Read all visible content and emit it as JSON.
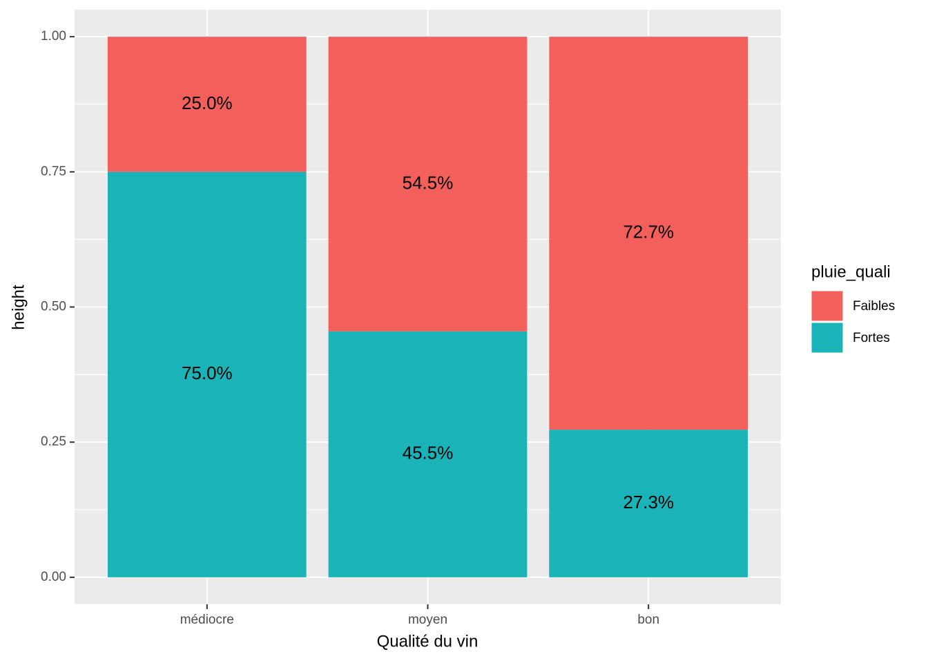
{
  "chart_data": {
    "type": "stacked-bar",
    "x_label": "Qualité du vin",
    "y_label": "height",
    "categories": [
      "médiocre",
      "moyen",
      "bon"
    ],
    "series": [
      {
        "name": "Faibles",
        "color": "#f35f5b",
        "values": [
          0.25,
          0.545,
          0.727
        ],
        "value_labels": [
          "25.0%",
          "54.5%",
          "72.7%"
        ]
      },
      {
        "name": "Fortes",
        "color": "#1ab3b8",
        "values": [
          0.75,
          0.455,
          0.273
        ],
        "value_labels": [
          "75.0%",
          "45.5%",
          "27.3%"
        ]
      }
    ],
    "ylim": [
      -0.05,
      1.05
    ],
    "yticks": [
      {
        "value": 0,
        "label": "0.00"
      },
      0.25,
      {
        "value": 0.5,
        "label": "0.50"
      },
      0.75,
      {
        "value": 1,
        "label": "1.00"
      }
    ],
    "legend_title": "pluie_quali",
    "legend_position": "right",
    "grid": true
  }
}
